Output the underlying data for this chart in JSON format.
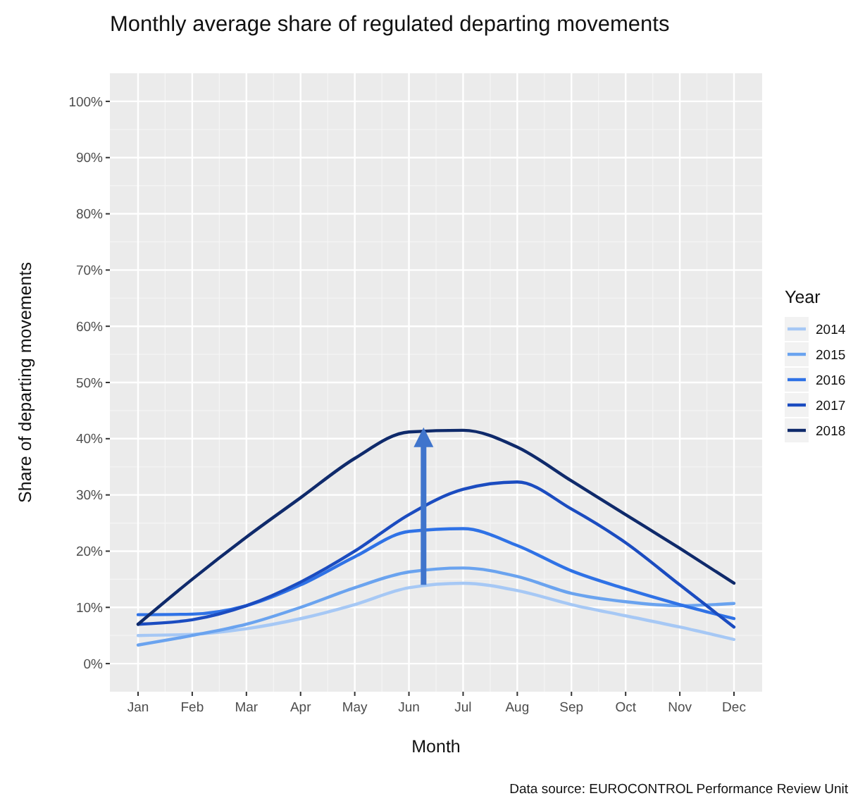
{
  "chart_data": {
    "type": "line",
    "title": "Monthly average share of regulated departing movements",
    "xlabel": "Month",
    "ylabel": "Share of departing movements",
    "legend_title": "Year",
    "legend": "right",
    "grid": true,
    "categories": [
      "Jan",
      "Feb",
      "Mar",
      "Apr",
      "May",
      "Jun",
      "Jul",
      "Aug",
      "Sep",
      "Oct",
      "Nov",
      "Dec"
    ],
    "ylim": [
      -5,
      105
    ],
    "yticks": [
      {
        "value": 0,
        "label": "0%"
      },
      {
        "value": 10,
        "label": "10%"
      },
      {
        "value": 20,
        "label": "20%"
      },
      {
        "value": 30,
        "label": "30%"
      },
      {
        "value": 40,
        "label": "40%"
      },
      {
        "value": 50,
        "label": "50%"
      },
      {
        "value": 60,
        "label": "60%"
      },
      {
        "value": 70,
        "label": "70%"
      },
      {
        "value": 80,
        "label": "80%"
      },
      {
        "value": 90,
        "label": "90%"
      },
      {
        "value": 100,
        "label": "100%"
      }
    ],
    "series": [
      {
        "name": "2014",
        "color": "#a6c8f5",
        "values": [
          5,
          5.2,
          6.2,
          8,
          10.5,
          13.5,
          14.3,
          13,
          10.5,
          8.5,
          6.5,
          4.3
        ]
      },
      {
        "name": "2015",
        "color": "#6aa3ef",
        "values": [
          3.3,
          5,
          7,
          10,
          13.5,
          16.3,
          17,
          15.5,
          12.5,
          11,
          10.3,
          10.7
        ]
      },
      {
        "name": "2016",
        "color": "#2f72e6",
        "values": [
          8.7,
          8.8,
          10.3,
          14,
          19,
          23.5,
          24,
          21,
          16.5,
          13.3,
          10.5,
          8
        ]
      },
      {
        "name": "2017",
        "color": "#1b4cc0",
        "values": [
          7,
          7.8,
          10.3,
          14.5,
          20,
          26.5,
          31,
          32.3,
          27.5,
          21.5,
          14,
          6.5
        ]
      },
      {
        "name": "2018",
        "color": "#0f2a6b",
        "values": [
          7,
          15,
          22.5,
          29.5,
          36.5,
          41.2,
          41.5,
          38.5,
          32.5,
          26.5,
          20.5,
          14.3
        ]
      }
    ],
    "annotations": [
      "Data source: EUROCONTROL Performance Review Unit"
    ]
  }
}
